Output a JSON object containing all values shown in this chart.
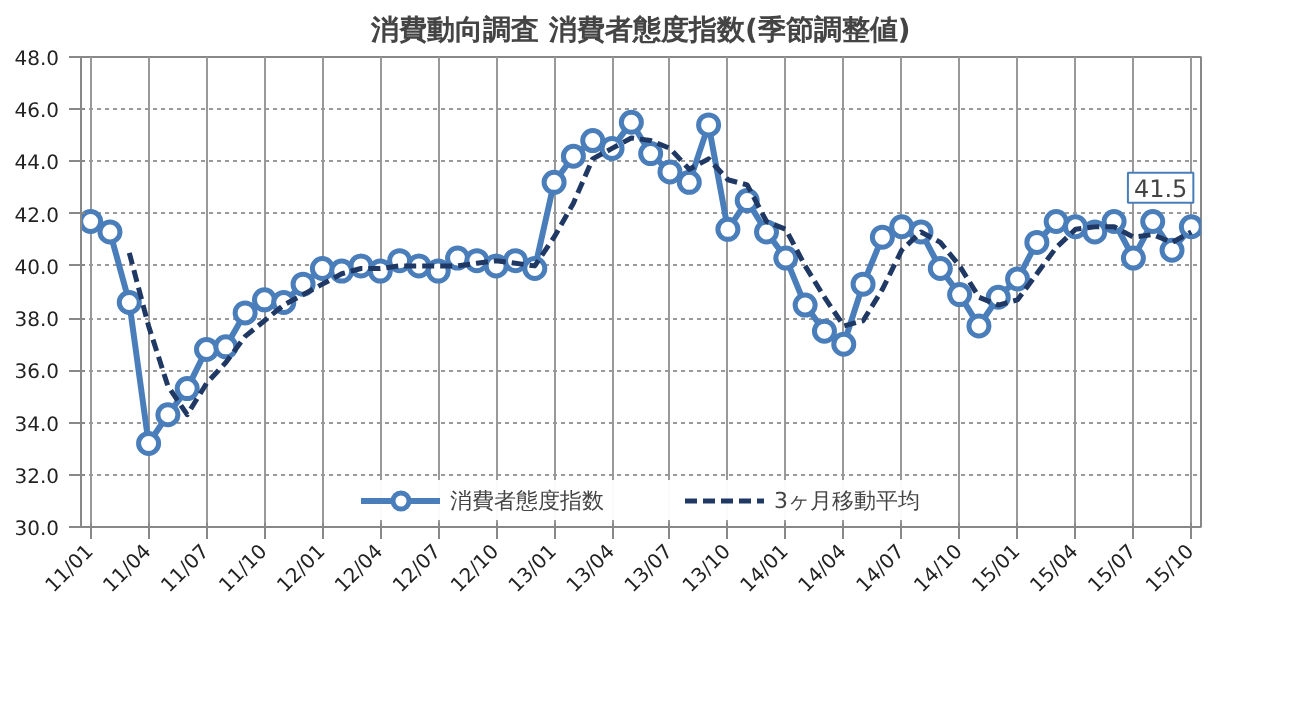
{
  "chart_data": {
    "type": "line",
    "title": "消費動向調査 消費者態度指数(季節調整値)",
    "categories": [
      "11/01",
      null,
      null,
      "11/04",
      null,
      null,
      "11/07",
      null,
      null,
      "11/10",
      null,
      null,
      "12/01",
      null,
      null,
      "12/04",
      null,
      null,
      "12/07",
      null,
      null,
      "12/10",
      null,
      null,
      "13/01",
      null,
      null,
      "13/04",
      null,
      null,
      "13/07",
      null,
      null,
      "13/10",
      null,
      null,
      "14/01",
      null,
      null,
      "14/04",
      null,
      null,
      "14/07",
      null,
      null,
      "14/10",
      null,
      null,
      "15/01",
      null,
      null,
      "15/04",
      null,
      null,
      "15/07",
      null,
      null,
      "15/10"
    ],
    "series": [
      {
        "name": "消費者態度指数",
        "color": "#4a7ebb",
        "marker": "circle",
        "line_style": "solid",
        "values": [
          41.7,
          41.3,
          38.6,
          33.2,
          34.3,
          35.3,
          36.8,
          36.9,
          38.2,
          38.7,
          38.6,
          39.3,
          39.9,
          39.8,
          40.0,
          39.8,
          40.2,
          40.0,
          39.8,
          40.3,
          40.2,
          40.0,
          40.2,
          39.9,
          43.2,
          44.2,
          44.8,
          44.5,
          45.5,
          44.3,
          43.6,
          43.2,
          45.4,
          41.4,
          42.5,
          41.3,
          40.3,
          38.5,
          37.5,
          37.0,
          39.3,
          41.1,
          41.5,
          41.3,
          39.9,
          38.9,
          37.7,
          38.8,
          39.5,
          40.9,
          41.7,
          41.5,
          41.3,
          41.7,
          40.3,
          41.7,
          40.6,
          41.5
        ],
        "value_labels": [
          null,
          null,
          null,
          null,
          null,
          null,
          null,
          null,
          null,
          null,
          null,
          null,
          null,
          null,
          null,
          null,
          null,
          null,
          null,
          null,
          null,
          null,
          null,
          null,
          null,
          null,
          null,
          null,
          null,
          null,
          null,
          null,
          null,
          null,
          null,
          null,
          null,
          null,
          null,
          null,
          null,
          null,
          null,
          null,
          null,
          null,
          null,
          null,
          null,
          null,
          null,
          null,
          null,
          null,
          null,
          null,
          null,
          "41.5"
        ]
      },
      {
        "name": "3ヶ月移動平均",
        "color": "#1f3864",
        "marker": "none",
        "line_style": "dashed",
        "values": [
          null,
          null,
          40.5,
          37.7,
          35.4,
          34.3,
          35.5,
          36.3,
          37.3,
          37.9,
          38.5,
          38.9,
          39.3,
          39.7,
          39.9,
          39.9,
          40.0,
          40.0,
          40.0,
          40.0,
          40.1,
          40.2,
          40.1,
          40.0,
          41.1,
          42.4,
          44.1,
          44.5,
          44.9,
          44.8,
          44.5,
          43.7,
          44.1,
          43.3,
          43.1,
          41.7,
          41.4,
          40.0,
          38.8,
          37.7,
          37.9,
          39.1,
          40.6,
          41.3,
          40.9,
          40.0,
          38.8,
          38.5,
          38.7,
          39.7,
          40.7,
          41.4,
          41.5,
          41.5,
          41.1,
          41.2,
          40.9,
          41.3
        ]
      }
    ],
    "ylim": [
      30,
      48
    ],
    "yticks": [
      {
        "value": 30,
        "label": "30.0"
      },
      {
        "value": 32,
        "label": "32.0"
      },
      {
        "value": 34,
        "label": "34.0"
      },
      {
        "value": 36,
        "label": "36.0"
      },
      {
        "value": 38,
        "label": "38.0"
      },
      {
        "value": 40,
        "label": "40.0"
      },
      {
        "value": 42,
        "label": "42.0"
      },
      {
        "value": 44,
        "label": "44.0"
      },
      {
        "value": 46,
        "label": "46.0"
      },
      {
        "value": 48,
        "label": "48.0"
      }
    ],
    "grid": true,
    "legend": "bottom"
  }
}
